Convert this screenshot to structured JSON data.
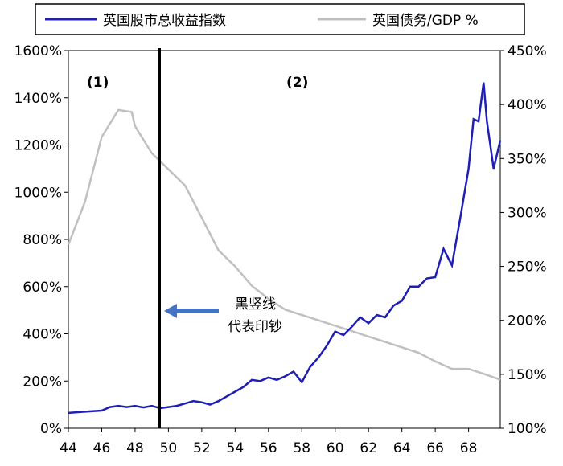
{
  "chart_data": {
    "type": "line",
    "title": "",
    "xlabel": "",
    "x_ticks": [
      "44",
      "46",
      "48",
      "50",
      "52",
      "54",
      "56",
      "58",
      "60",
      "62",
      "64",
      "66",
      "68"
    ],
    "xlim": [
      44,
      69.9
    ],
    "y_left": {
      "ticks": [
        "0%",
        "200%",
        "400%",
        "600%",
        "800%",
        "1000%",
        "1200%",
        "1400%",
        "1600%"
      ],
      "range": [
        0,
        1600
      ]
    },
    "y_right": {
      "ticks": [
        "100%",
        "150%",
        "200%",
        "250%",
        "300%",
        "350%",
        "400%",
        "450%"
      ],
      "range": [
        100,
        450
      ]
    },
    "legend": [
      {
        "label": "英国股市总收益指数",
        "color": "#1f1fb4",
        "axis": "left"
      },
      {
        "label": "英国债务/GDP %",
        "color": "#c0c0c0",
        "axis": "right"
      }
    ],
    "series": [
      {
        "name": "英国股市总收益指数",
        "axis": "left",
        "color": "#1f1fb4",
        "points": [
          [
            44,
            65
          ],
          [
            45,
            70
          ],
          [
            46,
            75
          ],
          [
            46.5,
            90
          ],
          [
            47,
            95
          ],
          [
            47.5,
            90
          ],
          [
            48,
            95
          ],
          [
            48.5,
            88
          ],
          [
            49,
            95
          ],
          [
            49.5,
            85
          ],
          [
            50,
            90
          ],
          [
            50.5,
            95
          ],
          [
            51,
            105
          ],
          [
            51.5,
            115
          ],
          [
            52,
            110
          ],
          [
            52.5,
            100
          ],
          [
            53,
            115
          ],
          [
            53.5,
            135
          ],
          [
            54,
            155
          ],
          [
            54.5,
            175
          ],
          [
            55,
            205
          ],
          [
            55.5,
            200
          ],
          [
            56,
            215
          ],
          [
            56.5,
            205
          ],
          [
            57,
            220
          ],
          [
            57.5,
            240
          ],
          [
            58,
            195
          ],
          [
            58.5,
            260
          ],
          [
            59,
            300
          ],
          [
            59.5,
            350
          ],
          [
            60,
            410
          ],
          [
            60.5,
            395
          ],
          [
            61,
            430
          ],
          [
            61.5,
            470
          ],
          [
            62,
            445
          ],
          [
            62.5,
            480
          ],
          [
            63,
            470
          ],
          [
            63.5,
            520
          ],
          [
            64,
            540
          ],
          [
            64.5,
            600
          ],
          [
            65,
            600
          ],
          [
            65.5,
            635
          ],
          [
            66,
            640
          ],
          [
            66.5,
            760
          ],
          [
            67,
            690
          ],
          [
            67.5,
            890
          ],
          [
            68,
            1100
          ],
          [
            68.3,
            1310
          ],
          [
            68.6,
            1300
          ],
          [
            68.9,
            1465
          ],
          [
            69.1,
            1300
          ],
          [
            69.3,
            1200
          ],
          [
            69.5,
            1100
          ],
          [
            69.7,
            1160
          ],
          [
            69.9,
            1220
          ]
        ]
      },
      {
        "name": "英国债务/GDP %",
        "axis": "right",
        "color": "#c0c0c0",
        "points": [
          [
            44,
            270
          ],
          [
            45,
            310
          ],
          [
            46,
            370
          ],
          [
            47,
            395
          ],
          [
            47.8,
            393
          ],
          [
            48,
            380
          ],
          [
            49,
            355
          ],
          [
            50,
            340
          ],
          [
            51,
            325
          ],
          [
            52,
            295
          ],
          [
            53,
            265
          ],
          [
            54,
            250
          ],
          [
            55,
            232
          ],
          [
            56,
            220
          ],
          [
            57,
            210
          ],
          [
            58,
            205
          ],
          [
            59,
            200
          ],
          [
            60,
            195
          ],
          [
            61,
            190
          ],
          [
            62,
            185
          ],
          [
            63,
            180
          ],
          [
            64,
            175
          ],
          [
            65,
            170
          ],
          [
            66,
            162
          ],
          [
            67,
            155
          ],
          [
            68,
            155
          ],
          [
            69,
            150
          ],
          [
            69.9,
            145
          ]
        ]
      }
    ],
    "annotations": [
      {
        "text": "(1)",
        "position": "left of vertical line"
      },
      {
        "text": "(2)",
        "position": "right of vertical line"
      },
      {
        "text_line1": "黑竖线",
        "text_line2": "代表印钞",
        "arrow_to": "vertical line",
        "vline_x": 49.45
      }
    ]
  }
}
